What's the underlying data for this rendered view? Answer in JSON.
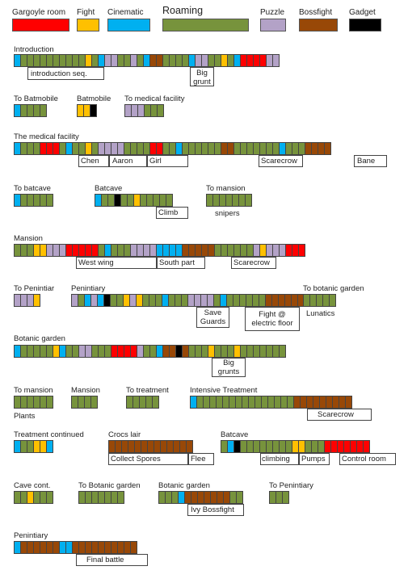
{
  "legend": [
    {
      "label": "Gargoyle room",
      "color": "#ff0000"
    },
    {
      "label": "Fight",
      "color": "#ffc000"
    },
    {
      "label": "Cinematic",
      "color": "#00b0f0"
    },
    {
      "label": "Roaming",
      "color": "#77933c"
    },
    {
      "label": "Puzzle",
      "color": "#b3a2c7"
    },
    {
      "label": "Bossfight",
      "color": "#984807"
    },
    {
      "label": "Gadget",
      "color": "#000000"
    }
  ],
  "sections": [
    {
      "id": "introduction",
      "title": "Introduction",
      "sequence": "CRRRRRRRRRRFRCPPRRPRCBBRRRRCPPRRFRCGGGGPP",
      "annotations": [
        {
          "text": "introduction seq."
        },
        {
          "text": "Big grunt"
        }
      ]
    },
    {
      "id": "to-batmobile",
      "title": "To Batmobile",
      "sequence": "CRRRR"
    },
    {
      "id": "batmobile",
      "title": "Batmobile",
      "sequence": "FFK"
    },
    {
      "id": "to-medical",
      "title": "To medical facility",
      "sequence": "PPPRRR"
    },
    {
      "id": "medical",
      "title": "The medical facility",
      "sequence": "CRRRGGGRCRRFRPPPPRRRRGGRRCRRRRRRBBRRRRRRRCRRRBBBB",
      "annotations": [
        {
          "text": "Chen"
        },
        {
          "text": "Aaron"
        },
        {
          "text": "Girl"
        },
        {
          "text": "Scarecrow"
        },
        {
          "text": "Bane"
        }
      ]
    },
    {
      "id": "to-batcave",
      "title": "To batcave",
      "sequence": "CRRRRR"
    },
    {
      "id": "batcave-1",
      "title": "Batcave",
      "sequence": "CRRKRRFRRRRR",
      "annotations": [
        {
          "text": "Climb"
        }
      ]
    },
    {
      "id": "to-mansion-1",
      "title": "To mansion",
      "sequence": "RRRRRRR",
      "annotations": [
        {
          "text": "snipers"
        }
      ]
    },
    {
      "id": "mansion-1",
      "title": "Mansion",
      "sequence": "RRRFFPPPGGGGGRCRRRPPPPCCCCBBBBBRRRRRRPFPPPGGG",
      "annotations": [
        {
          "text": "West wing"
        },
        {
          "text": "South part"
        },
        {
          "text": "Scarecrow"
        }
      ]
    },
    {
      "id": "to-penintiar",
      "title": "To Penintiar",
      "sequence": "PPPF"
    },
    {
      "id": "penintiary-1",
      "title": "Penintiary",
      "sequence": "PRCPCKRRFPFRRRCRRRPPPPRCRRRRRRBBBBBBC",
      "annotations": [
        {
          "text": "Save Guards"
        },
        {
          "text": "Fight @ electric floor"
        }
      ]
    },
    {
      "id": "to-botanic-1",
      "title": "To botanic garden",
      "sequence": "RRRRR",
      "annotations": [
        {
          "text": "Lunatics"
        }
      ]
    },
    {
      "id": "botanic-1",
      "title": "Botanic garden",
      "sequence": "CRRRRRFCRRPPRRRGGGGPRRCBBKBRRRFRRRFRRRRRRR",
      "annotations": [
        {
          "text": "Big grunts"
        }
      ]
    },
    {
      "id": "to-mansion-2",
      "title": "To mansion",
      "sequence": "RRRRRR",
      "annotations": [
        {
          "text": "Plants"
        }
      ]
    },
    {
      "id": "mansion-2",
      "title": "Mansion",
      "sequence": "RRRR"
    },
    {
      "id": "to-treatment",
      "title": "To treatment",
      "sequence": "RRRRR"
    },
    {
      "id": "intensive",
      "title": "Intensive Treatment",
      "sequence": "CRRRRRRRRRRRRRRRBBBBBBBBB",
      "annotations": [
        {
          "text": "Scarecrow"
        }
      ]
    },
    {
      "id": "treatment-cont",
      "title": "Treatment continued",
      "sequence": "CRRFFC"
    },
    {
      "id": "crocs-lair",
      "title": "Crocs lair",
      "sequence": "BBBBBBBBBBBBB",
      "annotations": [
        {
          "text": "Collect Spores"
        },
        {
          "text": "Flee"
        }
      ]
    },
    {
      "id": "batcave-2",
      "title": "Batcave",
      "sequence": "RCKRRRRRRRRFFRRRGGGGGGG",
      "annotations": [
        {
          "text": "climbing"
        },
        {
          "text": "Pumps"
        },
        {
          "text": "Control room"
        }
      ]
    },
    {
      "id": "cave-cont",
      "title": "Cave cont.",
      "sequence": "RRFRRR"
    },
    {
      "id": "to-botanic-2",
      "title": "To Botanic garden",
      "sequence": "RRRRRRR"
    },
    {
      "id": "botanic-2",
      "title": "Botanic garden",
      "sequence": "RRRCBBBBBBBRR",
      "annotations": [
        {
          "text": "Ivy Bossfight"
        }
      ]
    },
    {
      "id": "to-penintiary",
      "title": "To Penintiary",
      "sequence": "RRR"
    },
    {
      "id": "penintiary-2",
      "title": "Penintiary",
      "sequence": "CBBBBBBCCBBBBBBBBBB",
      "annotations": [
        {
          "text": "Final battle"
        }
      ]
    }
  ]
}
